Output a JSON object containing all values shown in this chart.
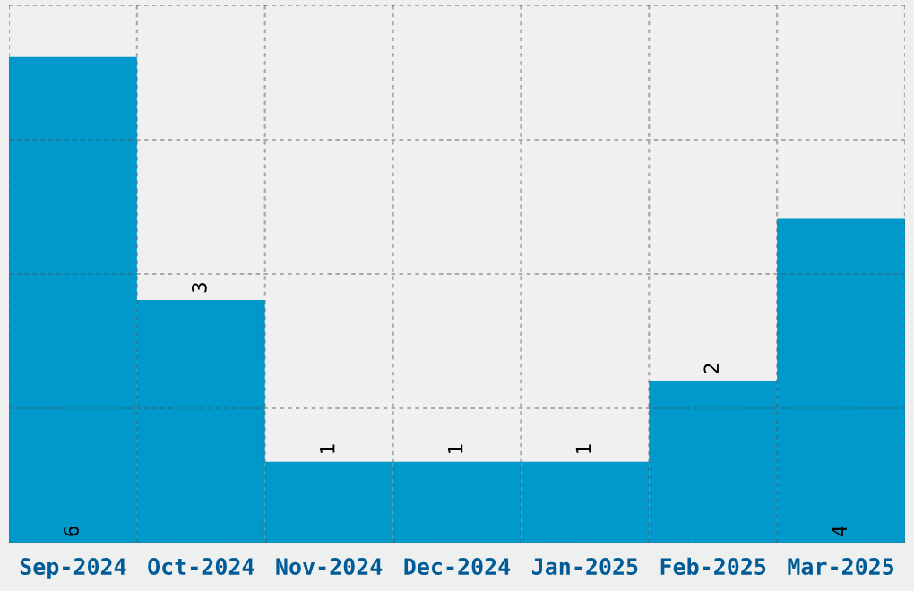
{
  "chart_data": {
    "type": "bar",
    "categories": [
      "Sep-2024",
      "Oct-2024",
      "Nov-2024",
      "Dec-2024",
      "Jan-2025",
      "Feb-2025",
      "Mar-2025"
    ],
    "values": [
      6,
      3,
      1,
      1,
      1,
      2,
      4
    ],
    "color": "#0099cc",
    "data_labels": true,
    "ylim": [
      0,
      6.64
    ],
    "yticks": [
      {
        "value": 0,
        "label": null
      },
      {
        "value": 1.66,
        "label": null
      },
      {
        "value": 3.32,
        "label": null
      },
      {
        "value": 4.98,
        "label": null
      },
      {
        "value": 6.64,
        "label": null
      }
    ],
    "tick_labels": "x",
    "grid": true
  }
}
